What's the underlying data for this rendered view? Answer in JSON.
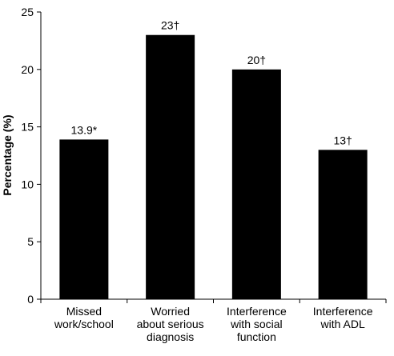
{
  "chart_data": {
    "type": "bar",
    "categories": [
      [
        "Missed",
        "work/school"
      ],
      [
        "Worried",
        "about serious",
        "diagnosis"
      ],
      [
        "Interference",
        "with social",
        "function"
      ],
      [
        "Interference",
        "with ADL"
      ]
    ],
    "values": [
      13.9,
      23,
      20,
      13
    ],
    "data_labels": [
      "13.9*",
      "23†",
      "20†",
      "13†"
    ],
    "ylabel": "Percentage (%)",
    "ylim": [
      0,
      25
    ],
    "yticks": [
      0,
      5,
      10,
      15,
      20,
      25
    ],
    "bar_color": "#000000",
    "grid": false,
    "legend": "none"
  }
}
